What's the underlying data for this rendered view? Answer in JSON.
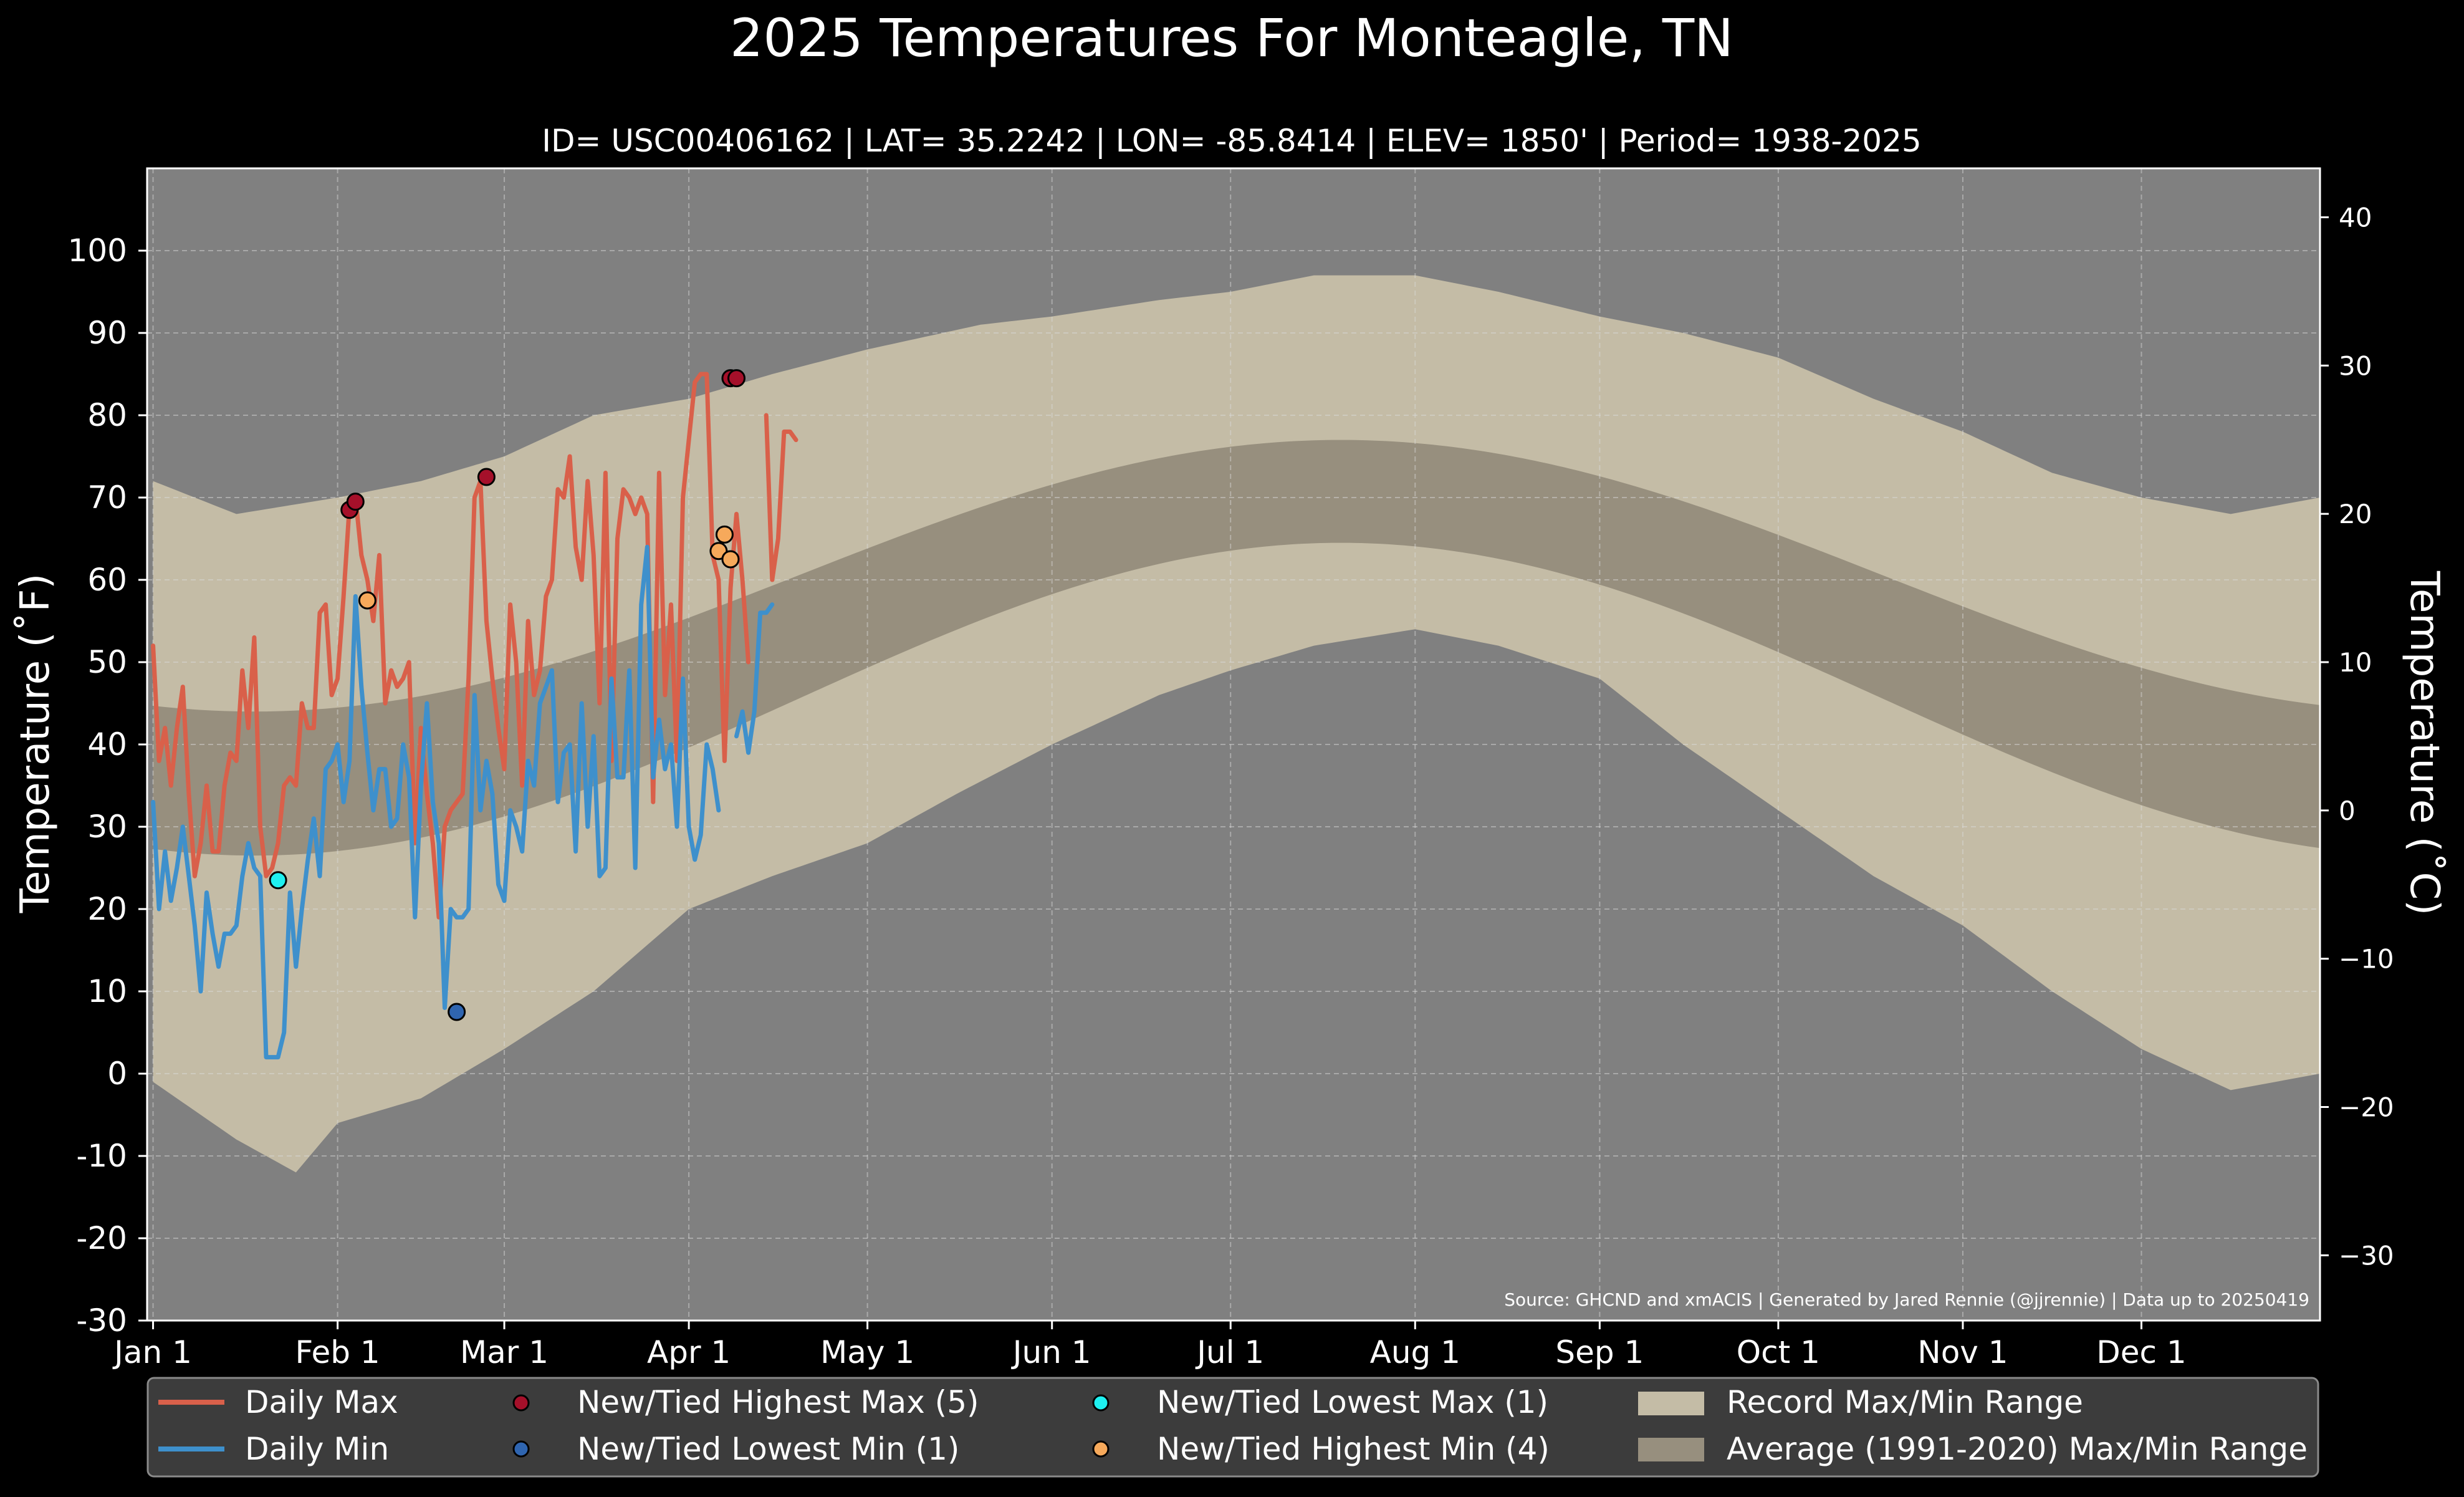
{
  "chart_data": {
    "type": "line",
    "title": "2025 Temperatures For Monteagle, TN",
    "subtitle": "ID= USC00406162 | LAT= 35.2242 | LON= -85.8414 | ELEV= 1850' | Period= 1938-2025",
    "ylabel": "Temperature (˚F)",
    "ylabel_right": "Temperature (˚C)",
    "ylim": [
      -30,
      110
    ],
    "yticks": [
      "-30",
      "-20",
      "-10",
      "0",
      "10",
      "20",
      "30",
      "40",
      "50",
      "60",
      "70",
      "80",
      "90",
      "100"
    ],
    "ylim_c": [
      -34.4,
      43.3
    ],
    "yticks_c": [
      "−30",
      "−20",
      "−10",
      "0",
      "10",
      "20",
      "30",
      "40"
    ],
    "x_range_days": [
      0,
      365
    ],
    "xticks": [
      {
        "label": "Jan 1",
        "day": 1
      },
      {
        "label": "Feb 1",
        "day": 32
      },
      {
        "label": "Mar 1",
        "day": 60
      },
      {
        "label": "Apr 1",
        "day": 91
      },
      {
        "label": "May 1",
        "day": 121
      },
      {
        "label": "Jun 1",
        "day": 152
      },
      {
        "label": "Jul 1",
        "day": 182
      },
      {
        "label": "Aug 1",
        "day": 213
      },
      {
        "label": "Sep 1",
        "day": 244
      },
      {
        "label": "Oct 1",
        "day": 274
      },
      {
        "label": "Nov 1",
        "day": 305
      },
      {
        "label": "Dec 1",
        "day": 335
      }
    ],
    "grid": true,
    "source_note": "Source: GHCND and xmACIS | Generated by Jared Rennie (@jjrennie) | Data up to 20250419",
    "legend_placement": "bottom",
    "colors": {
      "background": "#000000",
      "plot_bg": "#808080",
      "record_band": "#c4bca6",
      "avg_band": "#978f7e",
      "daily_max": "#d9604a",
      "daily_min": "#3e90cc",
      "highest_max": "#a5102a",
      "lowest_min": "#2f65b0",
      "lowest_max": "#1ef0f0",
      "highest_min": "#f6a95b"
    },
    "record_max_knots": [
      [
        1,
        72
      ],
      [
        15,
        68
      ],
      [
        32,
        70
      ],
      [
        46,
        72
      ],
      [
        60,
        75
      ],
      [
        75,
        80
      ],
      [
        91,
        82
      ],
      [
        105,
        85
      ],
      [
        121,
        88
      ],
      [
        140,
        91
      ],
      [
        152,
        92
      ],
      [
        170,
        94
      ],
      [
        182,
        95
      ],
      [
        196,
        97
      ],
      [
        213,
        97
      ],
      [
        227,
        95
      ],
      [
        244,
        92
      ],
      [
        258,
        90
      ],
      [
        274,
        87
      ],
      [
        290,
        82
      ],
      [
        305,
        78
      ],
      [
        320,
        73
      ],
      [
        335,
        70
      ],
      [
        350,
        68
      ],
      [
        365,
        70
      ]
    ],
    "record_min_knots": [
      [
        1,
        -1
      ],
      [
        15,
        -8
      ],
      [
        25,
        -12
      ],
      [
        32,
        -6
      ],
      [
        46,
        -3
      ],
      [
        60,
        3
      ],
      [
        75,
        10
      ],
      [
        91,
        20
      ],
      [
        105,
        24
      ],
      [
        121,
        28
      ],
      [
        136,
        34
      ],
      [
        152,
        40
      ],
      [
        170,
        46
      ],
      [
        182,
        49
      ],
      [
        196,
        52
      ],
      [
        213,
        54
      ],
      [
        227,
        52
      ],
      [
        244,
        48
      ],
      [
        258,
        40
      ],
      [
        274,
        32
      ],
      [
        290,
        24
      ],
      [
        305,
        18
      ],
      [
        320,
        10
      ],
      [
        335,
        3
      ],
      [
        350,
        -2
      ],
      [
        365,
        0
      ]
    ],
    "series": [
      {
        "name": "Daily Max",
        "x": [
          1,
          2,
          3,
          4,
          5,
          6,
          7,
          8,
          9,
          10,
          11,
          12,
          13,
          14,
          15,
          16,
          17,
          18,
          19,
          20,
          21,
          22,
          23,
          24,
          25,
          26,
          27,
          28,
          29,
          30,
          31,
          32,
          33,
          34,
          35,
          36,
          37,
          38,
          39,
          40,
          41,
          42,
          43,
          44,
          45,
          46,
          47,
          48,
          49,
          50,
          51,
          52,
          53,
          54,
          55,
          56,
          57,
          58,
          59,
          60,
          61,
          62,
          63,
          64,
          65,
          66,
          67,
          68,
          69,
          70,
          71,
          72,
          73,
          74,
          75,
          76,
          77,
          78,
          79,
          80,
          81,
          82,
          83,
          84,
          85,
          86,
          87,
          88,
          89,
          90,
          91,
          92,
          93,
          94,
          95,
          96,
          97,
          98,
          99,
          100,
          101,
          102,
          103,
          104,
          105,
          106,
          107,
          108,
          109
        ],
        "values": [
          52,
          38,
          42,
          35,
          42,
          47,
          34,
          24,
          28,
          35,
          27,
          27,
          35,
          39,
          38,
          49,
          42,
          53,
          30,
          24,
          25,
          28,
          35,
          36,
          35,
          45,
          42,
          42,
          56,
          57,
          46,
          48,
          58,
          69,
          70,
          63,
          60,
          55,
          63,
          45,
          49,
          47,
          48,
          50,
          28,
          42,
          34,
          28,
          19,
          30,
          32,
          33,
          34,
          48,
          70,
          72,
          55,
          48,
          42,
          37,
          57,
          50,
          35,
          55,
          46,
          49,
          58,
          60,
          71,
          70,
          75,
          64,
          60,
          72,
          63,
          45,
          73,
          38,
          65,
          71,
          70,
          68,
          70,
          68,
          33,
          73,
          46,
          57,
          38,
          70,
          77,
          84,
          85,
          85,
          63,
          60,
          38,
          59,
          68,
          60,
          50,
          null,
          null,
          80,
          60,
          65,
          78,
          78,
          77
        ]
      },
      {
        "name": "Daily Min",
        "x": [
          1,
          2,
          3,
          4,
          5,
          6,
          7,
          8,
          9,
          10,
          11,
          12,
          13,
          14,
          15,
          16,
          17,
          18,
          19,
          20,
          21,
          22,
          23,
          24,
          25,
          26,
          27,
          28,
          29,
          30,
          31,
          32,
          33,
          34,
          35,
          36,
          37,
          38,
          39,
          40,
          41,
          42,
          43,
          44,
          45,
          46,
          47,
          48,
          49,
          50,
          51,
          52,
          53,
          54,
          55,
          56,
          57,
          58,
          59,
          60,
          61,
          62,
          63,
          64,
          65,
          66,
          67,
          68,
          69,
          70,
          71,
          72,
          73,
          74,
          75,
          76,
          77,
          78,
          79,
          80,
          81,
          82,
          83,
          84,
          85,
          86,
          87,
          88,
          89,
          90,
          91,
          92,
          93,
          94,
          95,
          96,
          97,
          98,
          99,
          100,
          101,
          102,
          103,
          104,
          105,
          106,
          107,
          108,
          109
        ],
        "values": [
          33,
          20,
          27,
          21,
          25,
          30,
          24,
          18,
          10,
          22,
          17,
          13,
          17,
          17,
          18,
          24,
          28,
          25,
          24,
          2,
          2,
          2,
          5,
          22,
          13,
          20,
          26,
          31,
          24,
          37,
          38,
          40,
          33,
          38,
          58,
          47,
          39,
          32,
          37,
          37,
          30,
          31,
          40,
          36,
          19,
          35,
          45,
          33,
          28,
          8,
          20,
          19,
          19,
          20,
          46,
          32,
          38,
          34,
          23,
          21,
          32,
          30,
          27,
          38,
          35,
          45,
          47,
          49,
          33,
          39,
          40,
          27,
          45,
          30,
          41,
          24,
          25,
          48,
          36,
          36,
          49,
          25,
          57,
          64,
          36,
          43,
          37,
          40,
          30,
          48,
          30,
          26,
          29,
          40,
          37,
          32,
          null,
          null,
          41,
          44,
          39,
          44,
          56,
          56,
          57,
          null,
          null,
          null,
          null
        ]
      }
    ],
    "markers": [
      {
        "name": "New/Tied Highest Max (5)",
        "points": [
          [
            34,
            68.5
          ],
          [
            35,
            69.5
          ],
          [
            57,
            72.5
          ],
          [
            98,
            84.5
          ],
          [
            99,
            84.5
          ]
        ]
      },
      {
        "name": "New/Tied Lowest Min (1)",
        "points": [
          [
            52,
            7.5
          ]
        ]
      },
      {
        "name": "New/Tied Lowest Max (1)",
        "points": [
          [
            22,
            23.5
          ]
        ]
      },
      {
        "name": "New/Tied Highest Min (4)",
        "points": [
          [
            37,
            57.5
          ],
          [
            96,
            63.5
          ],
          [
            97,
            65.5
          ],
          [
            98,
            62.5
          ]
        ]
      }
    ],
    "legend": {
      "daily_max": "Daily Max",
      "daily_min": "Daily Min",
      "highest_max": "New/Tied Highest Max (5)",
      "lowest_min": "New/Tied Lowest Min (1)",
      "lowest_max": "New/Tied Lowest Max (1)",
      "highest_min": "New/Tied Highest Min (4)",
      "record_range": "Record Max/Min Range",
      "avg_range": "Average (1991-2020) Max/Min Range"
    }
  }
}
